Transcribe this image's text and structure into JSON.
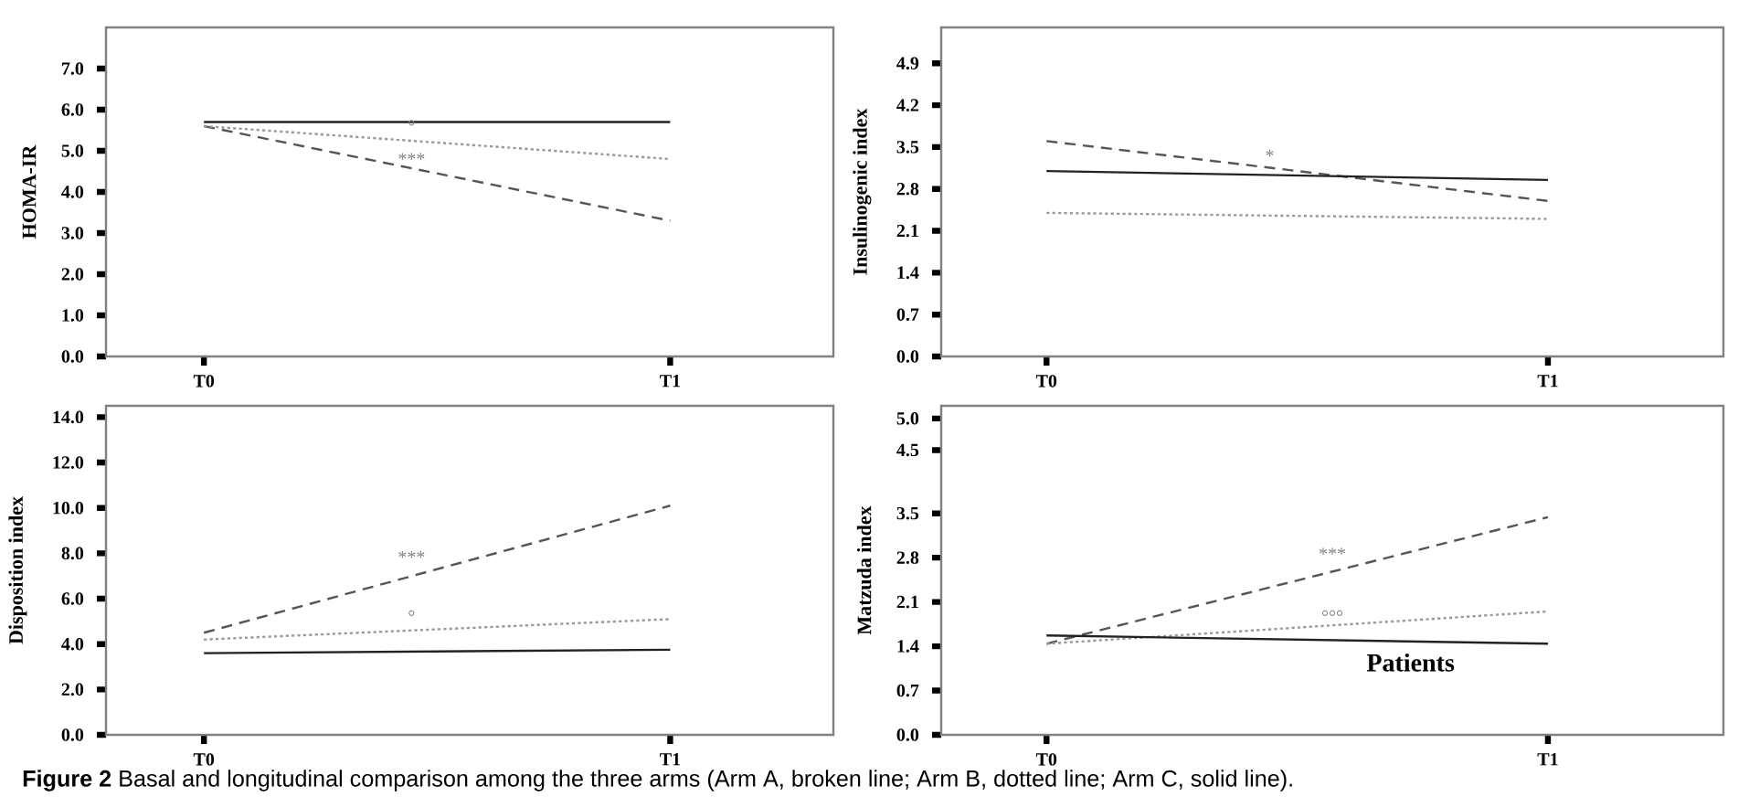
{
  "chart_data": [
    {
      "type": "line",
      "ylabel": "HOMA-IR",
      "categories": [
        "T0",
        "T1"
      ],
      "ylim": [
        0,
        8.0
      ],
      "yticks": [
        {
          "value": 0,
          "label": "0.0"
        },
        {
          "value": 1,
          "label": "1.0"
        },
        {
          "value": 2,
          "label": "2.0"
        },
        {
          "value": 3,
          "label": "3.0"
        },
        {
          "value": 4,
          "label": "4.0"
        },
        {
          "value": 5,
          "label": "5.0"
        },
        {
          "value": 6,
          "label": "6.0"
        },
        {
          "value": 7,
          "label": "7.0"
        }
      ],
      "series": [
        {
          "color": "#555555",
          "line_style": "dashed",
          "values": [
            5.6,
            3.3
          ]
        },
        {
          "color": "#999999",
          "line_style": "dotted",
          "values": [
            5.6,
            4.8
          ]
        },
        {
          "color": "#222222",
          "line_style": "solid",
          "values": [
            5.7,
            5.7
          ]
        }
      ],
      "annotations": [
        "°",
        "***",
        "**Figure 2** Basal and longitudinal comparison among the three arms (Arm A, broken line; Arm B, dotted line; Arm C, solid line)."
      ]
    },
    {
      "type": "line",
      "ylabel": "Insulinogenic index",
      "categories": [
        "T0",
        "T1"
      ],
      "ylim": [
        0,
        5.5
      ],
      "yticks": [
        {
          "value": 0,
          "label": "0.0"
        },
        0.7,
        1.4,
        2.1,
        2.8,
        3.5,
        4.2,
        4.9
      ],
      "series": [
        {
          "color": "#555555",
          "line_style": "dashed",
          "values": [
            3.6,
            2.6
          ]
        },
        {
          "color": "#999999",
          "line_style": "dotted",
          "values": [
            2.4,
            2.3
          ]
        },
        {
          "color": "#222222",
          "line_style": "solid",
          "values": [
            3.1,
            2.95
          ]
        }
      ],
      "annotations": [
        "*"
      ]
    },
    {
      "type": "line",
      "ylabel": "Disposition index",
      "categories": [
        "T0",
        "T1"
      ],
      "ylim": [
        0,
        14.5
      ],
      "yticks": [
        {
          "value": 0,
          "label": "0.0"
        },
        {
          "value": 2,
          "label": "2.0"
        },
        {
          "value": 4,
          "label": "4.0"
        },
        {
          "value": 6,
          "label": "6.0"
        },
        {
          "value": 8,
          "label": "8.0"
        },
        {
          "value": 10,
          "label": "10.0"
        },
        {
          "value": 12,
          "label": "12.0"
        },
        {
          "value": 14,
          "label": "14.0"
        }
      ],
      "series": [
        {
          "color": "#555555",
          "line_style": "dashed",
          "values": [
            4.5,
            10.1
          ]
        },
        {
          "color": "#999999",
          "line_style": "dotted",
          "values": [
            4.2,
            5.1
          ]
        },
        {
          "color": "#222222",
          "line_style": "solid",
          "values": [
            3.6,
            3.75
          ]
        }
      ],
      "annotations": [
        "***",
        "°"
      ]
    },
    {
      "type": "line",
      "ylabel": "Matzuda index",
      "categories": [
        "T0",
        "T1"
      ],
      "ylim": [
        0,
        5.2
      ],
      "yticks": [
        {
          "value": 0,
          "label": "0.0"
        },
        0.7,
        1.4,
        2.1,
        2.8,
        3.5,
        4.5,
        {
          "value": 5,
          "label": "5.0"
        }
      ],
      "series": [
        {
          "color": "#555555",
          "line_style": "dashed",
          "values": [
            1.44,
            3.44
          ]
        },
        {
          "color": "#999999",
          "line_style": "dotted",
          "values": [
            1.44,
            1.95
          ]
        },
        {
          "color": "#222222",
          "line_style": "solid",
          "values": [
            1.57,
            1.44
          ]
        }
      ],
      "annotations": [
        "***",
        "°°°",
        "Patients"
      ]
    }
  ]
}
